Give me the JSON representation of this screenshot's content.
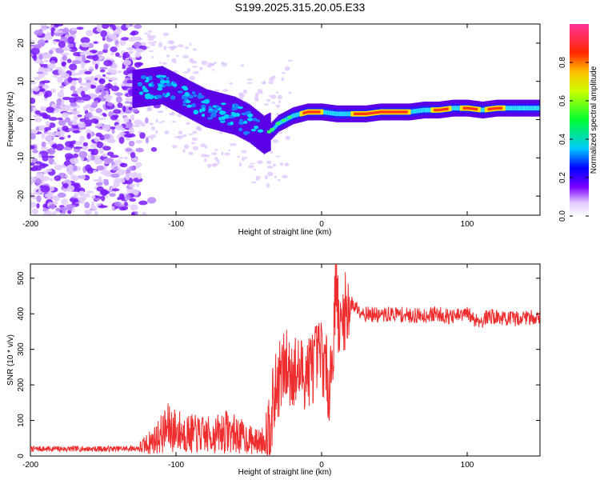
{
  "title": "S199.2025.315.20.05.E33",
  "colors": {
    "snr_line": "#ee2e2e",
    "axis": "#000000"
  },
  "chart_data": [
    {
      "type": "heatmap",
      "name": "spectrogram",
      "xlabel": "Height of straight line (km)",
      "ylabel": "Frequency (Hz)",
      "xlim": [
        -200,
        150
      ],
      "ylim": [
        -25,
        25
      ],
      "xticks": [
        -200,
        -100,
        0,
        100
      ],
      "xtick_labels": [
        "-200",
        "-100",
        "0",
        "100"
      ],
      "yticks": [
        -20,
        -10,
        0,
        10,
        20
      ],
      "ytick_labels": [
        "-20",
        "-10",
        "0",
        "10",
        "20"
      ],
      "ridge": {
        "x": [
          -130,
          -110,
          -100,
          -90,
          -80,
          -70,
          -60,
          -50,
          -40,
          -35,
          -30,
          -20,
          -10,
          0,
          10,
          20,
          30,
          40,
          50,
          60,
          70,
          80,
          90,
          100,
          110,
          120,
          130,
          140,
          150
        ],
        "y": [
          8,
          9,
          7,
          5,
          3,
          2,
          1,
          -1,
          -4,
          -3,
          -1,
          1,
          2,
          2,
          1.5,
          1.5,
          1.5,
          2,
          2,
          2,
          2.5,
          2.5,
          3,
          3,
          2.5,
          3,
          3,
          3,
          3
        ]
      },
      "colorbar": {
        "label": "Normalized spectral amplitude",
        "range": [
          0,
          1
        ],
        "ticks": [
          0,
          0.2,
          0.4,
          0.6,
          0.8
        ],
        "tick_labels": [
          "0.0",
          "0.2",
          "0.4",
          "0.6",
          "0.8"
        ]
      }
    },
    {
      "type": "line",
      "name": "snr",
      "xlabel": "Height of straight line (km)",
      "ylabel": "SNR (10 * v/v)",
      "xlim": [
        -200,
        150
      ],
      "ylim": [
        0,
        540
      ],
      "xticks": [
        -200,
        -100,
        0,
        100
      ],
      "xtick_labels": [
        "-200",
        "-100",
        "0",
        "100"
      ],
      "yticks": [
        0,
        100,
        200,
        300,
        400,
        500
      ],
      "ytick_labels": [
        "0",
        "100",
        "200",
        "300",
        "400",
        "500"
      ],
      "series": [
        {
          "name": "SNR",
          "x": [
            -200,
            -180,
            -160,
            -140,
            -125,
            -115,
            -105,
            -95,
            -85,
            -75,
            -65,
            -55,
            -45,
            -38,
            -30,
            -25,
            -20,
            -15,
            -10,
            -5,
            0,
            5,
            8,
            10,
            12,
            15,
            20,
            25,
            30,
            40,
            50,
            60,
            70,
            80,
            90,
            100,
            105,
            110,
            115,
            120,
            130,
            140,
            150
          ],
          "y": [
            20,
            20,
            20,
            20,
            22,
            45,
            80,
            65,
            60,
            58,
            70,
            55,
            40,
            45,
            210,
            250,
            240,
            230,
            240,
            260,
            290,
            200,
            300,
            530,
            330,
            400,
            430,
            415,
            400,
            395,
            400,
            395,
            395,
            400,
            390,
            400,
            385,
            380,
            395,
            390,
            385,
            390,
            390
          ]
        }
      ]
    }
  ]
}
